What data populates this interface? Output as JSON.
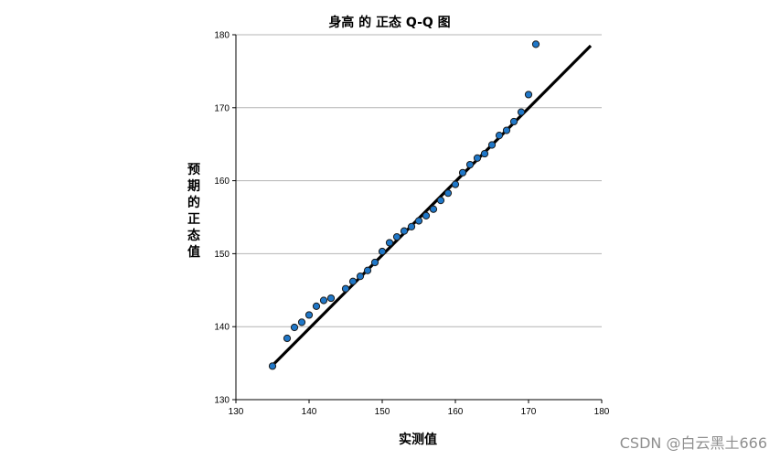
{
  "chart_data": {
    "type": "scatter",
    "title": "身高 的 正态 Q-Q 图",
    "xlabel": "实测值",
    "ylabel": "预期的正态值",
    "xlim": [
      130,
      180
    ],
    "ylim": [
      130,
      180
    ],
    "xticks": [
      "130",
      "140",
      "150",
      "160",
      "170",
      "180"
    ],
    "yticks": [
      "130",
      "140",
      "150",
      "160",
      "170",
      "180"
    ],
    "grid": "horizontal",
    "point_color": "#1f77c8",
    "line_color": "#000000",
    "reference_line": {
      "x": [
        135,
        178.5
      ],
      "y": [
        134.7,
        178.5
      ]
    },
    "points": [
      {
        "x": 135,
        "y": 134.6
      },
      {
        "x": 137,
        "y": 138.4
      },
      {
        "x": 138,
        "y": 139.9
      },
      {
        "x": 139,
        "y": 140.6
      },
      {
        "x": 140,
        "y": 141.6
      },
      {
        "x": 141,
        "y": 142.8
      },
      {
        "x": 142,
        "y": 143.6
      },
      {
        "x": 143,
        "y": 143.9
      },
      {
        "x": 145,
        "y": 145.2
      },
      {
        "x": 146,
        "y": 146.2
      },
      {
        "x": 147,
        "y": 146.9
      },
      {
        "x": 148,
        "y": 147.7
      },
      {
        "x": 149,
        "y": 148.8
      },
      {
        "x": 150,
        "y": 150.3
      },
      {
        "x": 151,
        "y": 151.5
      },
      {
        "x": 152,
        "y": 152.3
      },
      {
        "x": 153,
        "y": 153.1
      },
      {
        "x": 154,
        "y": 153.7
      },
      {
        "x": 155,
        "y": 154.5
      },
      {
        "x": 156,
        "y": 155.2
      },
      {
        "x": 157,
        "y": 156.1
      },
      {
        "x": 158,
        "y": 157.3
      },
      {
        "x": 159,
        "y": 158.3
      },
      {
        "x": 160,
        "y": 159.5
      },
      {
        "x": 161,
        "y": 161.1
      },
      {
        "x": 162,
        "y": 162.2
      },
      {
        "x": 163,
        "y": 163.1
      },
      {
        "x": 164,
        "y": 163.7
      },
      {
        "x": 165,
        "y": 164.9
      },
      {
        "x": 166,
        "y": 166.2
      },
      {
        "x": 167,
        "y": 166.9
      },
      {
        "x": 168,
        "y": 168.1
      },
      {
        "x": 169,
        "y": 169.4
      },
      {
        "x": 170,
        "y": 171.8
      },
      {
        "x": 171,
        "y": 178.7
      }
    ]
  },
  "watermark": "CSDN @白云黑土666"
}
